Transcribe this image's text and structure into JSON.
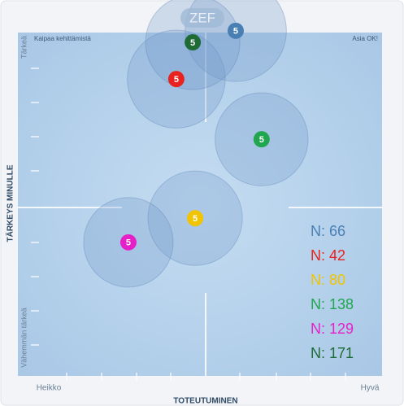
{
  "chart_data": {
    "type": "bubble",
    "logo": "ZEF",
    "xlabel": "TOTEUTUMINEN",
    "ylabel": "TÄRKEYS MINULLE",
    "x_low_label": "Heikko",
    "x_high_label": "Hyvä",
    "y_high_label": "Tärkeä",
    "y_low_label": "Vähemmän tärkeä",
    "top_left_label": "Kaipaa kehittämistä",
    "top_right_label": "Asia OK!",
    "xlim": [
      0,
      100
    ],
    "ylim": [
      0,
      100
    ],
    "series": [
      {
        "name": "N: 66",
        "color": "#4a7fb3",
        "label": "5",
        "x": 58.6,
        "y": 101,
        "size": 14.5
      },
      {
        "name": "N: 42",
        "color": "#e8231f",
        "label": "5",
        "x": 41.6,
        "y": 86.8,
        "size": 14
      },
      {
        "name": "N: 80",
        "color": "#f0c400",
        "label": "5",
        "x": 47.0,
        "y": 45.9,
        "size": 13.5
      },
      {
        "name": "N: 138",
        "color": "#1fa64e",
        "label": "5",
        "x": 66.0,
        "y": 69.1,
        "size": 13.3
      },
      {
        "name": "N: 129",
        "color": "#e620c8",
        "label": "5",
        "x": 27.9,
        "y": 38.8,
        "size": 12.8
      },
      {
        "name": "N: 171",
        "color": "#1e6b35",
        "label": "5",
        "x": 46.3,
        "y": 97.6,
        "size": 13.5
      }
    ]
  }
}
